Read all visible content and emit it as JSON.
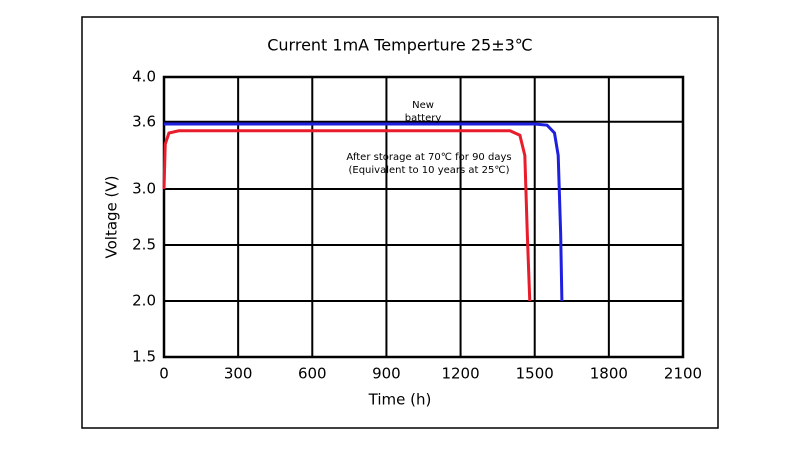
{
  "chart_data": {
    "type": "line",
    "title": "Current 1mA  Temperture 25±3℃",
    "x_label": "Time (h)",
    "y_label": "Voltage (V)",
    "xlim": [
      0,
      2100
    ],
    "xticks": [
      0,
      300,
      600,
      900,
      1200,
      1500,
      1800,
      2100
    ],
    "ylim": [
      1.5,
      4
    ],
    "yticks": [
      {
        "value": 4,
        "label": "4.0"
      },
      3.6,
      {
        "value": 3,
        "label": "3.0"
      },
      2.5,
      {
        "value": 2,
        "label": "2.0"
      },
      1.5
    ],
    "grid": true,
    "series": [
      {
        "name": "New battery",
        "color": "#1f1fe0",
        "x": [
          0,
          1500,
          1550,
          1580,
          1595,
          1605,
          1610
        ],
        "values": [
          3.58,
          3.58,
          3.57,
          3.5,
          3.3,
          2.6,
          2.0
        ]
      },
      {
        "name": "After storage at 70℃ for 90 days (Equivalent to 10 years at 25℃)",
        "color": "#e81c2a",
        "x": [
          0,
          5,
          20,
          60,
          1400,
          1440,
          1460,
          1470,
          1480
        ],
        "values": [
          3.0,
          3.4,
          3.5,
          3.52,
          3.52,
          3.48,
          3.3,
          2.6,
          2.0
        ]
      }
    ],
    "annotations": [
      {
        "lines": [
          "New",
          "battery"
        ]
      },
      {
        "lines": [
          "After storage at 70℃ for 90 days",
          "(Equivalent to 10 years at 25℃)"
        ]
      }
    ]
  }
}
